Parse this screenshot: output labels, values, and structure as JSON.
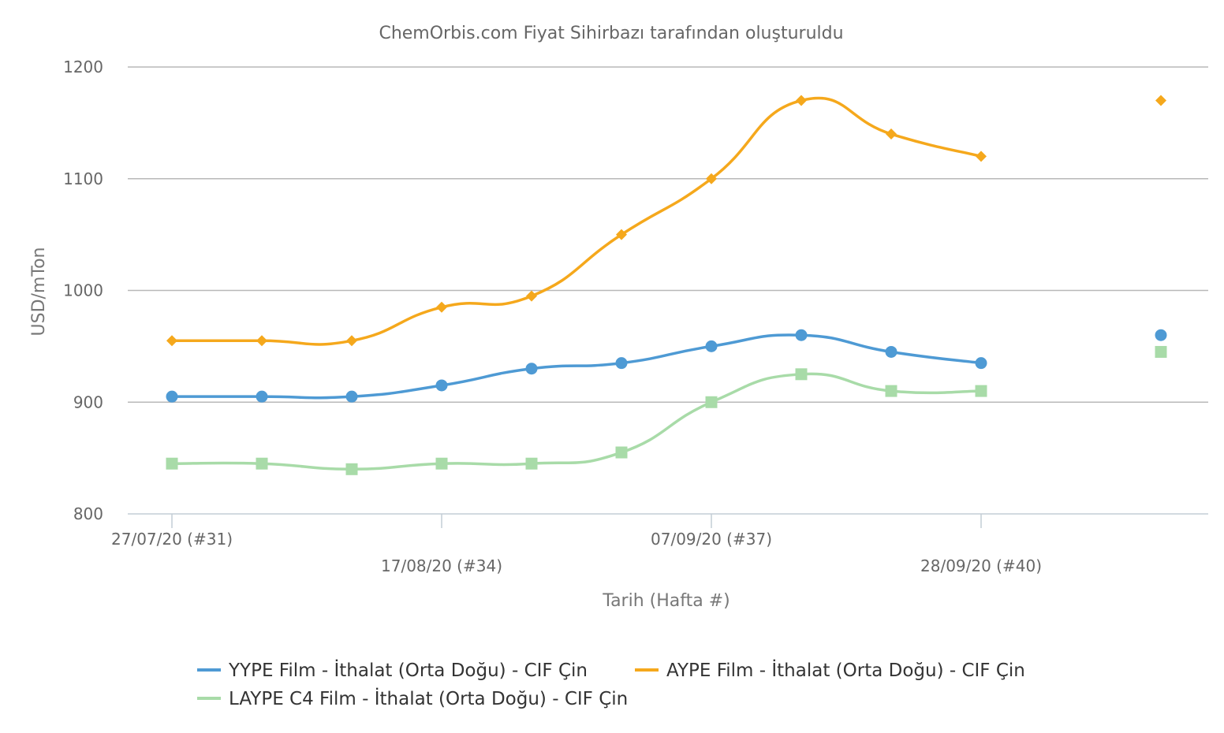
{
  "chart_data": {
    "type": "line",
    "title": "ChemOrbis.com Fiyat Sihirbazı tarafından oluşturuldu",
    "xlabel": "Tarih (Hafta #)",
    "ylabel": "USD/mTon",
    "ylim": [
      800,
      1200
    ],
    "yticks": [
      800,
      900,
      1000,
      1100,
      1200
    ],
    "grid": true,
    "legend_position": "bottom",
    "x": [
      "27/07/20",
      "03/08/20",
      "10/08/20",
      "17/08/20",
      "24/08/20",
      "31/08/20",
      "07/09/20",
      "14/09/20",
      "21/09/20",
      "28/09/20",
      "05/10/20",
      "12/10/20"
    ],
    "x_tick_labels": [
      {
        "index": 0,
        "label": "27/07/20 (#31)",
        "row": 0
      },
      {
        "index": 3,
        "label": "17/08/20 (#34)",
        "row": 1
      },
      {
        "index": 6,
        "label": "07/09/20 (#37)",
        "row": 0
      },
      {
        "index": 9,
        "label": "28/09/20 (#40)",
        "row": 1
      }
    ],
    "series": [
      {
        "name": "YYPE Film - İthalat (Orta Doğu) - CIF Çin",
        "color": "#4e9ad4",
        "marker": "circle",
        "values": [
          905,
          905,
          905,
          915,
          930,
          935,
          950,
          960,
          945,
          935,
          null,
          960
        ]
      },
      {
        "name": "AYPE Film - İthalat (Orta Doğu) - CIF Çin",
        "color": "#f5a81c",
        "marker": "diamond",
        "values": [
          955,
          955,
          955,
          985,
          995,
          1050,
          1100,
          1170,
          1140,
          1120,
          null,
          1170
        ]
      },
      {
        "name": "LAYPE C4 Film - İthalat (Orta Doğu) - CIF Çin",
        "color": "#a8dba8",
        "marker": "square",
        "values": [
          845,
          845,
          840,
          845,
          845,
          855,
          900,
          925,
          910,
          910,
          null,
          945
        ]
      }
    ]
  }
}
